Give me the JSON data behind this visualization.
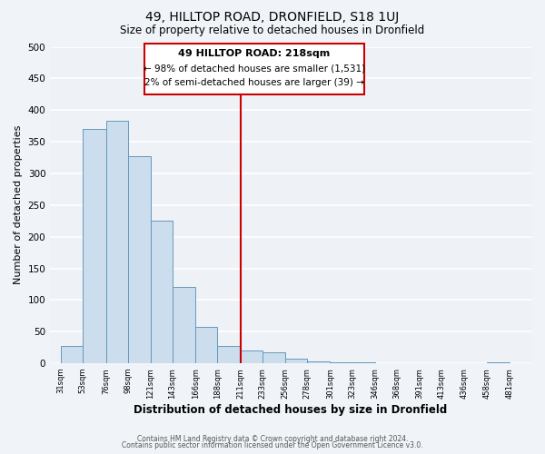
{
  "title": "49, HILLTOP ROAD, DRONFIELD, S18 1UJ",
  "subtitle": "Size of property relative to detached houses in Dronfield",
  "xlabel": "Distribution of detached houses by size in Dronfield",
  "ylabel": "Number of detached properties",
  "bar_left_edges": [
    31,
    53,
    76,
    98,
    121,
    143,
    166,
    188,
    211,
    233,
    256,
    278,
    301,
    323,
    346,
    368,
    391,
    413,
    436,
    458
  ],
  "bar_heights": [
    27,
    370,
    383,
    327,
    225,
    121,
    58,
    27,
    20,
    18,
    8,
    3,
    1,
    1,
    0,
    0,
    0,
    0,
    0,
    2
  ],
  "bar_widths": [
    22,
    23,
    22,
    23,
    22,
    23,
    22,
    23,
    22,
    23,
    22,
    23,
    22,
    23,
    22,
    23,
    22,
    23,
    22,
    23
  ],
  "tick_labels": [
    "31sqm",
    "53sqm",
    "76sqm",
    "98sqm",
    "121sqm",
    "143sqm",
    "166sqm",
    "188sqm",
    "211sqm",
    "233sqm",
    "256sqm",
    "278sqm",
    "301sqm",
    "323sqm",
    "346sqm",
    "368sqm",
    "391sqm",
    "413sqm",
    "436sqm",
    "458sqm",
    "481sqm"
  ],
  "tick_positions": [
    31,
    53,
    76,
    98,
    121,
    143,
    166,
    188,
    211,
    233,
    256,
    278,
    301,
    323,
    346,
    368,
    391,
    413,
    436,
    458,
    481
  ],
  "bar_color": "#ccdded",
  "bar_edge_color": "#6699bb",
  "vline_x": 211,
  "vline_color": "#cc0000",
  "ylim": [
    0,
    500
  ],
  "xlim": [
    20,
    503
  ],
  "annotation_title": "49 HILLTOP ROAD: 218sqm",
  "annotation_line1": "← 98% of detached houses are smaller (1,531)",
  "annotation_line2": "2% of semi-detached houses are larger (39) →",
  "box_color": "#ffffff",
  "box_edge_color": "#cc0000",
  "footer1": "Contains HM Land Registry data © Crown copyright and database right 2024.",
  "footer2": "Contains public sector information licensed under the Open Government Licence v3.0.",
  "background_color": "#f0f4f8",
  "plot_bg_color": "#eef2f7",
  "grid_color": "#ffffff"
}
